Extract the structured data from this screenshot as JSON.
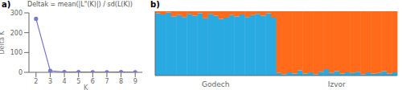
{
  "chart_data": [
    {
      "type": "line",
      "title": "Deltak = mean(|L\"(K)|) / sd(L(K))",
      "annotations": [
        "a)"
      ],
      "x_label": "K",
      "y_label": "Delta K",
      "x": [
        2,
        3,
        4,
        5,
        6,
        7,
        8,
        9
      ],
      "values": [
        270,
        8,
        2,
        1.2,
        1.0,
        1.0,
        1.5,
        1.0
      ],
      "color": "#7777cc",
      "marker": "circle",
      "xlim": [
        1.5,
        9.5
      ],
      "xticks": [
        2,
        3,
        4,
        5,
        6,
        7,
        8,
        9
      ],
      "ylim": [
        0,
        300
      ],
      "yticks": [
        0,
        100,
        200,
        300
      ]
    },
    {
      "type": "bar",
      "stacked": true,
      "annotations": [
        "b)"
      ],
      "tick_labels": "x",
      "categories": [
        null,
        null,
        null,
        null,
        null,
        null,
        null,
        null,
        null,
        null,
        null,
        "Godech",
        null,
        null,
        null,
        null,
        null,
        null,
        null,
        null,
        null,
        null,
        null,
        null,
        null,
        null,
        null,
        null,
        null,
        null,
        null,
        null,
        null,
        null,
        "Izvor",
        null,
        null,
        null,
        null,
        null,
        null,
        null,
        null,
        null,
        null,
        null
      ],
      "series": [
        {
          "color": "#29ABE2",
          "values": [
            0.97,
            0.95,
            0.98,
            0.92,
            0.94,
            0.91,
            0.96,
            0.93,
            0.97,
            0.89,
            0.96,
            0.93,
            0.88,
            0.9,
            0.94,
            0.92,
            0.95,
            0.91,
            0.94,
            0.96,
            0.93,
            0.97,
            0.9,
            0.04,
            0.02,
            0.05,
            0.03,
            0.08,
            0.03,
            0.05,
            0.02,
            0.06,
            0.1,
            0.04,
            0.07,
            0.03,
            0.05,
            0.04,
            0.06,
            0.02,
            0.05,
            0.03,
            0.04,
            0.07,
            0.03,
            0.05
          ]
        },
        {
          "color": "#FF6B1A",
          "values": [
            0.03,
            0.05,
            0.02,
            0.08,
            0.06,
            0.09,
            0.04,
            0.07,
            0.03,
            0.11,
            0.04,
            0.07,
            0.12,
            0.1,
            0.06,
            0.08,
            0.05,
            0.09,
            0.06,
            0.04,
            0.07,
            0.03,
            0.1,
            0.96,
            0.98,
            0.95,
            0.97,
            0.92,
            0.97,
            0.95,
            0.98,
            0.94,
            0.9,
            0.96,
            0.93,
            0.97,
            0.95,
            0.96,
            0.94,
            0.98,
            0.95,
            0.97,
            0.96,
            0.93,
            0.97,
            0.95
          ]
        }
      ],
      "ylim": [
        0,
        1
      ]
    }
  ]
}
